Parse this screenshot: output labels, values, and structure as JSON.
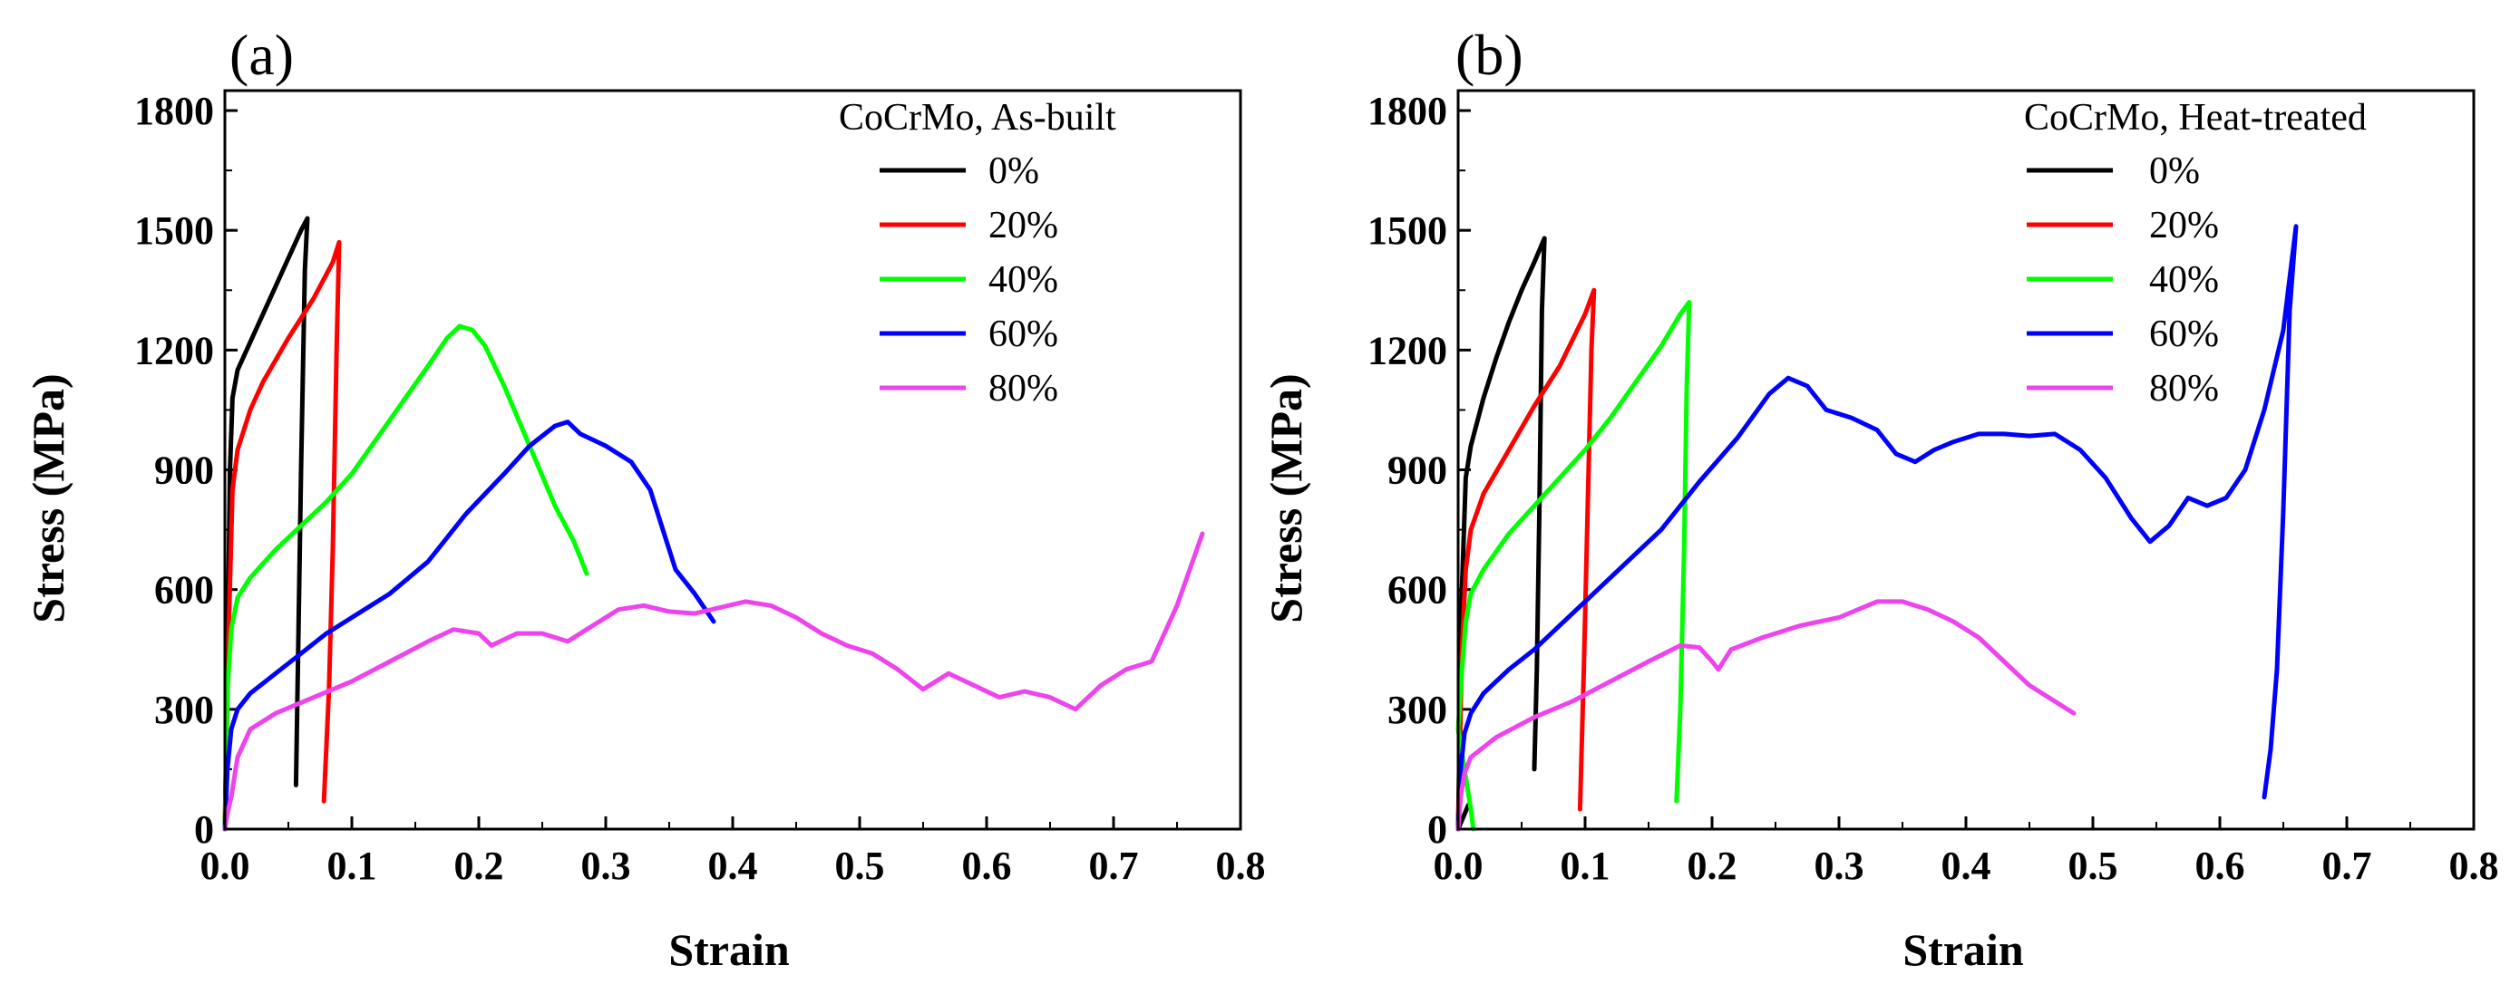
{
  "chart_data": [
    {
      "type": "line",
      "panel_label": "(a)",
      "legend_title": "CoCrMo, As-built",
      "xlabel": "Strain",
      "ylabel": "Stress (MPa)",
      "xlim": [
        0,
        0.8
      ],
      "ylim": [
        0,
        1850
      ],
      "xticks": [
        0,
        0.1,
        0.2,
        0.3,
        0.4,
        0.5,
        0.6,
        0.7,
        0.8
      ],
      "xtick_labels": [
        "0.0",
        "0.1",
        "0.2",
        "0.3",
        "0.4",
        "0.5",
        "0.6",
        "0.7",
        "0.8"
      ],
      "yticks": [
        0,
        300,
        600,
        900,
        1200,
        1500,
        1800
      ],
      "ytick_labels": [
        "0",
        "300",
        "600",
        "900",
        "1200",
        "1500",
        "1800"
      ],
      "legend_position": "top-right",
      "series": [
        {
          "name": "0%",
          "color": "#000000",
          "points": [
            [
              0.0,
              0
            ],
            [
              0.002,
              400
            ],
            [
              0.004,
              900
            ],
            [
              0.006,
              1080
            ],
            [
              0.01,
              1150
            ],
            [
              0.02,
              1220
            ],
            [
              0.03,
              1290
            ],
            [
              0.04,
              1360
            ],
            [
              0.05,
              1430
            ],
            [
              0.06,
              1500
            ],
            [
              0.065,
              1530
            ],
            [
              0.063,
              1400
            ],
            [
              0.06,
              900
            ],
            [
              0.058,
              500
            ],
            [
              0.056,
              110
            ]
          ]
        },
        {
          "name": "20%",
          "color": "#ff0000",
          "points": [
            [
              0.0,
              0
            ],
            [
              0.003,
              500
            ],
            [
              0.006,
              850
            ],
            [
              0.01,
              950
            ],
            [
              0.02,
              1050
            ],
            [
              0.03,
              1120
            ],
            [
              0.05,
              1230
            ],
            [
              0.07,
              1330
            ],
            [
              0.085,
              1420
            ],
            [
              0.09,
              1470
            ],
            [
              0.088,
              1200
            ],
            [
              0.085,
              700
            ],
            [
              0.082,
              350
            ],
            [
              0.078,
              70
            ]
          ]
        },
        {
          "name": "40%",
          "color": "#00ff00",
          "points": [
            [
              0.0,
              0
            ],
            [
              0.002,
              350
            ],
            [
              0.005,
              500
            ],
            [
              0.01,
              580
            ],
            [
              0.02,
              630
            ],
            [
              0.04,
              700
            ],
            [
              0.06,
              760
            ],
            [
              0.08,
              820
            ],
            [
              0.1,
              890
            ],
            [
              0.12,
              980
            ],
            [
              0.14,
              1070
            ],
            [
              0.16,
              1160
            ],
            [
              0.175,
              1230
            ],
            [
              0.185,
              1260
            ],
            [
              0.195,
              1250
            ],
            [
              0.205,
              1210
            ],
            [
              0.22,
              1110
            ],
            [
              0.24,
              960
            ],
            [
              0.26,
              810
            ],
            [
              0.275,
              720
            ],
            [
              0.285,
              640
            ]
          ]
        },
        {
          "name": "60%",
          "color": "#0000ff",
          "points": [
            [
              0.0,
              0
            ],
            [
              0.002,
              150
            ],
            [
              0.005,
              250
            ],
            [
              0.01,
              300
            ],
            [
              0.02,
              340
            ],
            [
              0.04,
              390
            ],
            [
              0.06,
              440
            ],
            [
              0.08,
              490
            ],
            [
              0.1,
              530
            ],
            [
              0.13,
              590
            ],
            [
              0.16,
              670
            ],
            [
              0.19,
              790
            ],
            [
              0.22,
              890
            ],
            [
              0.24,
              960
            ],
            [
              0.26,
              1010
            ],
            [
              0.27,
              1020
            ],
            [
              0.28,
              990
            ],
            [
              0.3,
              960
            ],
            [
              0.32,
              920
            ],
            [
              0.335,
              850
            ],
            [
              0.345,
              750
            ],
            [
              0.355,
              650
            ],
            [
              0.37,
              590
            ],
            [
              0.385,
              520
            ]
          ]
        },
        {
          "name": "80%",
          "color": "#ee44ee",
          "points": [
            [
              0.0,
              0
            ],
            [
              0.002,
              40
            ],
            [
              0.005,
              80
            ],
            [
              0.01,
              180
            ],
            [
              0.02,
              250
            ],
            [
              0.04,
              290
            ],
            [
              0.07,
              330
            ],
            [
              0.1,
              370
            ],
            [
              0.13,
              420
            ],
            [
              0.16,
              470
            ],
            [
              0.18,
              500
            ],
            [
              0.2,
              490
            ],
            [
              0.21,
              460
            ],
            [
              0.23,
              490
            ],
            [
              0.25,
              490
            ],
            [
              0.27,
              470
            ],
            [
              0.29,
              510
            ],
            [
              0.31,
              550
            ],
            [
              0.33,
              560
            ],
            [
              0.35,
              545
            ],
            [
              0.37,
              540
            ],
            [
              0.39,
              555
            ],
            [
              0.41,
              570
            ],
            [
              0.43,
              560
            ],
            [
              0.45,
              530
            ],
            [
              0.47,
              490
            ],
            [
              0.49,
              460
            ],
            [
              0.51,
              440
            ],
            [
              0.53,
              400
            ],
            [
              0.55,
              350
            ],
            [
              0.57,
              390
            ],
            [
              0.59,
              360
            ],
            [
              0.61,
              330
            ],
            [
              0.63,
              345
            ],
            [
              0.65,
              330
            ],
            [
              0.67,
              300
            ],
            [
              0.69,
              360
            ],
            [
              0.71,
              400
            ],
            [
              0.73,
              420
            ],
            [
              0.75,
              560
            ],
            [
              0.77,
              740
            ]
          ]
        }
      ]
    },
    {
      "type": "line",
      "panel_label": "(b)",
      "legend_title": "CoCrMo, Heat-treated",
      "xlabel": "Strain",
      "ylabel": "Stress (MPa)",
      "xlim": [
        0,
        0.8
      ],
      "ylim": [
        0,
        1850
      ],
      "xticks": [
        0,
        0.1,
        0.2,
        0.3,
        0.4,
        0.5,
        0.6,
        0.7,
        0.8
      ],
      "xtick_labels": [
        "0.0",
        "0.1",
        "0.2",
        "0.3",
        "0.4",
        "0.5",
        "0.6",
        "0.7",
        "0.8"
      ],
      "yticks": [
        0,
        300,
        600,
        900,
        1200,
        1500,
        1800
      ],
      "ytick_labels": [
        "0",
        "300",
        "600",
        "900",
        "1200",
        "1500",
        "1800"
      ],
      "legend_position": "top-right",
      "series": [
        {
          "name": "0%",
          "color": "#000000",
          "points": [
            [
              0.008,
              60
            ],
            [
              0.0,
              0
            ],
            [
              0.003,
              600
            ],
            [
              0.006,
              880
            ],
            [
              0.01,
              960
            ],
            [
              0.02,
              1080
            ],
            [
              0.03,
              1180
            ],
            [
              0.04,
              1270
            ],
            [
              0.05,
              1350
            ],
            [
              0.06,
              1420
            ],
            [
              0.068,
              1480
            ],
            [
              0.066,
              1300
            ],
            [
              0.064,
              800
            ],
            [
              0.062,
              400
            ],
            [
              0.06,
              150
            ]
          ]
        },
        {
          "name": "20%",
          "color": "#ff0000",
          "points": [
            [
              0.0,
              0
            ],
            [
              0.003,
              450
            ],
            [
              0.006,
              650
            ],
            [
              0.01,
              750
            ],
            [
              0.02,
              840
            ],
            [
              0.04,
              950
            ],
            [
              0.06,
              1060
            ],
            [
              0.08,
              1160
            ],
            [
              0.1,
              1290
            ],
            [
              0.107,
              1350
            ],
            [
              0.105,
              1200
            ],
            [
              0.102,
              800
            ],
            [
              0.099,
              400
            ],
            [
              0.096,
              50
            ]
          ]
        },
        {
          "name": "40%",
          "color": "#00ff00",
          "points": [
            [
              0.012,
              0
            ],
            [
              0.01,
              50
            ],
            [
              0.0,
              250
            ],
            [
              0.003,
              400
            ],
            [
              0.006,
              520
            ],
            [
              0.01,
              590
            ],
            [
              0.02,
              650
            ],
            [
              0.04,
              740
            ],
            [
              0.06,
              810
            ],
            [
              0.08,
              880
            ],
            [
              0.1,
              950
            ],
            [
              0.12,
              1030
            ],
            [
              0.14,
              1120
            ],
            [
              0.16,
              1210
            ],
            [
              0.175,
              1290
            ],
            [
              0.182,
              1320
            ],
            [
              0.18,
              1100
            ],
            [
              0.178,
              700
            ],
            [
              0.175,
              300
            ],
            [
              0.172,
              70
            ]
          ]
        },
        {
          "name": "60%",
          "color": "#0000ff",
          "points": [
            [
              0.0,
              0
            ],
            [
              0.002,
              150
            ],
            [
              0.005,
              240
            ],
            [
              0.01,
              290
            ],
            [
              0.02,
              340
            ],
            [
              0.04,
              400
            ],
            [
              0.06,
              450
            ],
            [
              0.08,
              510
            ],
            [
              0.1,
              570
            ],
            [
              0.13,
              660
            ],
            [
              0.16,
              750
            ],
            [
              0.19,
              870
            ],
            [
              0.22,
              980
            ],
            [
              0.245,
              1090
            ],
            [
              0.26,
              1130
            ],
            [
              0.275,
              1110
            ],
            [
              0.29,
              1050
            ],
            [
              0.31,
              1030
            ],
            [
              0.33,
              1000
            ],
            [
              0.345,
              940
            ],
            [
              0.36,
              920
            ],
            [
              0.375,
              950
            ],
            [
              0.39,
              970
            ],
            [
              0.41,
              990
            ],
            [
              0.43,
              990
            ],
            [
              0.45,
              985
            ],
            [
              0.47,
              990
            ],
            [
              0.49,
              950
            ],
            [
              0.51,
              880
            ],
            [
              0.53,
              780
            ],
            [
              0.545,
              720
            ],
            [
              0.56,
              760
            ],
            [
              0.575,
              830
            ],
            [
              0.59,
              810
            ],
            [
              0.605,
              830
            ],
            [
              0.62,
              900
            ],
            [
              0.635,
              1050
            ],
            [
              0.65,
              1250
            ],
            [
              0.66,
              1510
            ],
            [
              0.655,
              1300
            ],
            [
              0.65,
              800
            ],
            [
              0.645,
              400
            ],
            [
              0.64,
              200
            ],
            [
              0.635,
              80
            ]
          ]
        },
        {
          "name": "80%",
          "color": "#ee44ee",
          "points": [
            [
              0.0,
              0
            ],
            [
              0.002,
              80
            ],
            [
              0.005,
              140
            ],
            [
              0.01,
              180
            ],
            [
              0.03,
              230
            ],
            [
              0.06,
              280
            ],
            [
              0.09,
              320
            ],
            [
              0.12,
              370
            ],
            [
              0.15,
              420
            ],
            [
              0.175,
              460
            ],
            [
              0.19,
              455
            ],
            [
              0.2,
              420
            ],
            [
              0.205,
              400
            ],
            [
              0.215,
              450
            ],
            [
              0.24,
              480
            ],
            [
              0.27,
              510
            ],
            [
              0.3,
              530
            ],
            [
              0.33,
              570
            ],
            [
              0.35,
              570
            ],
            [
              0.37,
              550
            ],
            [
              0.39,
              520
            ],
            [
              0.41,
              480
            ],
            [
              0.43,
              420
            ],
            [
              0.45,
              360
            ],
            [
              0.47,
              320
            ],
            [
              0.485,
              290
            ]
          ]
        }
      ]
    }
  ]
}
